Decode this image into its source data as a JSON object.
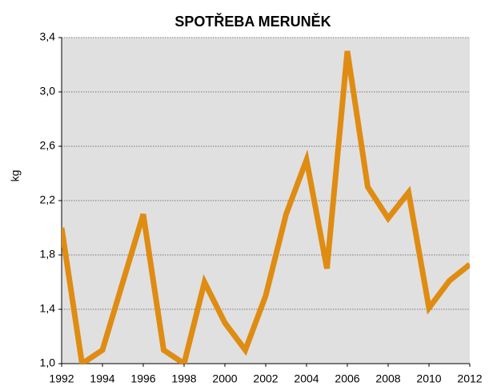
{
  "chart_data": {
    "type": "line",
    "title": "SPOTŘEBA MERUNĚK",
    "y_label": "kg",
    "x": [
      1992,
      1993,
      1994,
      1995,
      1996,
      1997,
      1998,
      1999,
      2000,
      2001,
      2002,
      2003,
      2004,
      2005,
      2006,
      2007,
      2008,
      2009,
      2010,
      2011,
      2012
    ],
    "series": [
      {
        "name": "kg",
        "color": "#df8c12",
        "values": [
          2.0,
          1.0,
          1.1,
          1.6,
          2.1,
          1.1,
          1.0,
          1.6,
          1.3,
          1.1,
          1.5,
          2.1,
          2.5,
          1.7,
          3.3,
          2.3,
          2.07,
          2.26,
          1.41,
          1.61,
          1.73
        ]
      }
    ],
    "xlim": [
      1992,
      2012
    ],
    "xticks": [
      1992,
      1994,
      1996,
      1998,
      2000,
      2002,
      2004,
      2006,
      2008,
      2010,
      2012
    ],
    "ylim": [
      1.0,
      3.4
    ],
    "yticks": [
      {
        "value": 1.0,
        "label": "1,0"
      },
      {
        "value": 1.4,
        "label": "1,4"
      },
      {
        "value": 1.8,
        "label": "1,8"
      },
      {
        "value": 2.2,
        "label": "2,2"
      },
      {
        "value": 2.6,
        "label": "2,6"
      },
      {
        "value": 3.0,
        "label": "3,0"
      },
      {
        "value": 3.4,
        "label": "3,4"
      }
    ],
    "grid": true,
    "plot_background": "#e0e0e0"
  }
}
